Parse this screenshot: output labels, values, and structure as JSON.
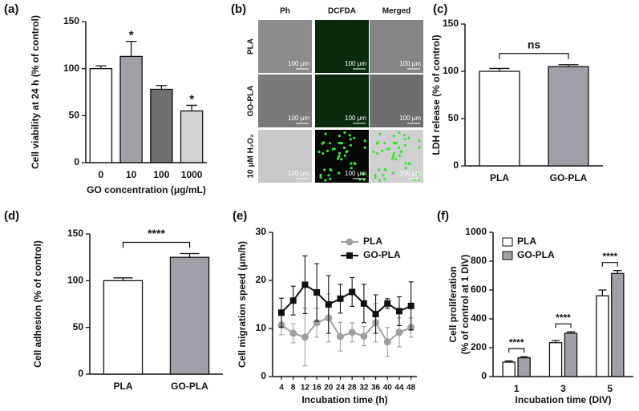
{
  "chart_data": [
    {
      "type": "bar",
      "panel_label": "(a)",
      "ylabel": "Cell viability at 24 h (% of control)",
      "xlabel": "GO concentration (μg/mL)",
      "categories": [
        "0",
        "10",
        "100",
        "1000"
      ],
      "values": [
        100,
        113,
        78,
        55
      ],
      "errors": [
        3,
        16,
        4,
        6
      ],
      "colors": [
        "#ffffff",
        "#a0a0a8",
        "#707070",
        "#d3d3d3"
      ],
      "significance": [
        null,
        "*",
        null,
        "*"
      ],
      "ylim": [
        0,
        150
      ],
      "yticks": [
        0,
        50,
        100,
        150
      ]
    },
    {
      "type": "bar",
      "panel_label": "(c)",
      "ylabel": "LDH release (% of control)",
      "categories": [
        "PLA",
        "GO-PLA"
      ],
      "values": [
        100,
        105
      ],
      "errors": [
        3,
        2
      ],
      "colors": [
        "#ffffff",
        "#a0a0a8"
      ],
      "comparison": "ns",
      "ylim": [
        0,
        150
      ],
      "yticks": [
        0,
        50,
        100,
        150
      ]
    },
    {
      "type": "bar",
      "panel_label": "(d)",
      "ylabel": "Cell adhesion  (% of control)",
      "categories": [
        "PLA",
        "GO-PLA"
      ],
      "values": [
        100,
        125
      ],
      "errors": [
        3,
        4
      ],
      "colors": [
        "#ffffff",
        "#a0a0a8"
      ],
      "comparison": "****",
      "ylim": [
        0,
        150
      ],
      "yticks": [
        0,
        50,
        100,
        150
      ]
    },
    {
      "type": "line",
      "panel_label": "(e)",
      "ylabel": "Cell migration speed (μm/h)",
      "xlabel": "Incubation time   (h)",
      "x": [
        4,
        8,
        12,
        16,
        20,
        24,
        28,
        32,
        36,
        40,
        44,
        48
      ],
      "series": [
        {
          "name": "PLA",
          "color": "#a0a0a0",
          "values": [
            10.7,
            9.0,
            8.2,
            11.2,
            12.2,
            8.3,
            9.2,
            8.4,
            11.2,
            7.2,
            9.2,
            10.2
          ],
          "errors": [
            2,
            2,
            6,
            3,
            5,
            3,
            2,
            2,
            4,
            3,
            3,
            2
          ]
        },
        {
          "name": "GO-PLA",
          "color": "#111111",
          "values": [
            13.3,
            15.8,
            19.1,
            17.5,
            15.0,
            16.2,
            17.6,
            15.2,
            13.0,
            15.2,
            13.6,
            14.7
          ],
          "errors": [
            3,
            3,
            6,
            6,
            6,
            3,
            3,
            4,
            4,
            1,
            3,
            5
          ]
        }
      ],
      "legend": "upper right",
      "xlim": [
        1,
        50
      ],
      "xticks": [
        4,
        8,
        12,
        16,
        20,
        24,
        28,
        32,
        36,
        40,
        44,
        48
      ],
      "ylim": [
        0,
        30
      ],
      "yticks": [
        0,
        10,
        20,
        30
      ]
    },
    {
      "type": "bar",
      "panel_label": "(f)",
      "ylabel": [
        "Cell proliferation",
        "(% of control at 1 DIV)"
      ],
      "xlabel": "Incubation time   (DIV)",
      "categories": [
        "1",
        "3",
        "5"
      ],
      "series": [
        {
          "name": "PLA",
          "color": "#ffffff",
          "values": [
            100,
            235,
            560
          ],
          "errors": [
            8,
            15,
            40
          ]
        },
        {
          "name": "GO-PLA",
          "color": "#a0a0a8",
          "values": [
            130,
            300,
            715
          ],
          "errors": [
            8,
            10,
            20
          ]
        }
      ],
      "significance": [
        "****",
        "****",
        "****"
      ],
      "legend": "upper left",
      "ylim": [
        0,
        1000
      ],
      "yticks": [
        0,
        200,
        400,
        600,
        800,
        1000
      ]
    }
  ],
  "image_panel": {
    "panel_label": "(b)",
    "columns": [
      "Ph",
      "DCFDA",
      "Merged"
    ],
    "rows": [
      "PLA",
      "GO-PLA",
      "10 μM H₂O₂"
    ],
    "scale_bar": "100 μm"
  }
}
